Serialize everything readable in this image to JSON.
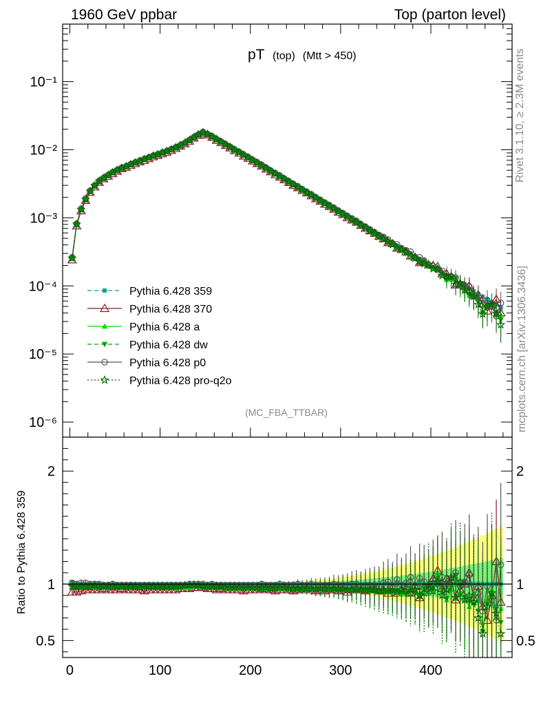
{
  "header": {
    "left": "1960 GeV ppbar",
    "right": "Top (parton level)"
  },
  "plot_title": {
    "main": "pT",
    "sub1": "(top)",
    "sub2": "(Mtt > 450)"
  },
  "analysis_tag": "(MC_FBA_TTBAR)",
  "side_labels": {
    "rivet": "Rivet 3.1.10, ≥ 2.3M events",
    "mcplots": "mcplots.cern.ch [arXiv:1306.3436]"
  },
  "ratio_ylabel": "Ratio to Pythia 6.428 359",
  "colors": {
    "p359": "#00a88a",
    "p370": "#8b1a2a",
    "pa": "#00dd00",
    "pdw": "#00a000",
    "pp0": "#555555",
    "pq2o": "#006400",
    "band_yellow": "#ffff80",
    "band_green": "#7cf07c"
  },
  "chart_data": {
    "type": "line",
    "x_axis": {
      "range": [
        -8,
        490
      ],
      "ticks": [
        0,
        100,
        200,
        300,
        400
      ]
    },
    "main_y_axis": {
      "scale": "log",
      "range": [
        6e-07,
        0.7
      ],
      "tick_labels": [
        "10⁻⁶",
        "10⁻⁵",
        "10⁻⁴",
        "10⁻³",
        "10⁻²",
        "10⁻¹"
      ]
    },
    "ratio_y_axis": {
      "range": [
        0.35,
        2.3
      ],
      "tick_labels": [
        "0.5",
        "1",
        "2"
      ]
    },
    "x": [
      2.5,
      7.5,
      12.5,
      17.5,
      22.5,
      27.5,
      32.5,
      37.5,
      42.5,
      47.5,
      52.5,
      57.5,
      62.5,
      67.5,
      72.5,
      77.5,
      82.5,
      87.5,
      92.5,
      97.5,
      102.5,
      107.5,
      112.5,
      117.5,
      122.5,
      127.5,
      132.5,
      137.5,
      142.5,
      147.5,
      152.5,
      157.5,
      162.5,
      167.5,
      172.5,
      177.5,
      182.5,
      187.5,
      192.5,
      197.5,
      202.5,
      207.5,
      212.5,
      217.5,
      222.5,
      227.5,
      232.5,
      237.5,
      242.5,
      247.5,
      252.5,
      257.5,
      262.5,
      267.5,
      272.5,
      277.5,
      282.5,
      287.5,
      292.5,
      297.5,
      302.5,
      307.5,
      312.5,
      317.5,
      322.5,
      327.5,
      332.5,
      337.5,
      342.5,
      347.5,
      352.5,
      357.5,
      362.5,
      367.5,
      372.5,
      377.5,
      382.5,
      387.5,
      392.5,
      397.5,
      402.5,
      407.5,
      412.5,
      417.5,
      422.5,
      427.5,
      432.5,
      437.5,
      442.5,
      447.5,
      452.5,
      457.5,
      462.5,
      467.5,
      472.5,
      477.5
    ],
    "reference_values": [
      0.00026,
      0.00082,
      0.00135,
      0.0019,
      0.0025,
      0.003,
      0.0035,
      0.0039,
      0.0043,
      0.0047,
      0.0051,
      0.0055,
      0.0058,
      0.0062,
      0.0066,
      0.007,
      0.0074,
      0.0078,
      0.0083,
      0.0087,
      0.0092,
      0.0097,
      0.0103,
      0.011,
      0.0118,
      0.0127,
      0.0139,
      0.0153,
      0.0168,
      0.0182,
      0.0172,
      0.0158,
      0.0145,
      0.0133,
      0.0122,
      0.0112,
      0.0102,
      0.0094,
      0.0086,
      0.0079,
      0.0072,
      0.0066,
      0.006,
      0.0055,
      0.005,
      0.00458,
      0.00418,
      0.00382,
      0.00349,
      0.00319,
      0.00291,
      0.00266,
      0.00243,
      0.00222,
      0.00203,
      0.00185,
      0.00169,
      0.00155,
      0.00141,
      0.00129,
      0.00118,
      0.00108,
      0.00098,
      0.0009,
      0.00082,
      0.00075,
      0.00068,
      0.00062,
      0.00057,
      0.00052,
      0.00047,
      0.00043,
      0.00039,
      0.00036,
      0.00033,
      0.0003,
      0.00027,
      0.00025,
      0.00023,
      0.00021,
      0.00019,
      0.000172,
      0.000157,
      0.000144,
      0.000131,
      0.00012,
      0.000109,
      0.0001,
      9.1e-05,
      8.3e-05,
      7.6e-05,
      6.9e-05,
      6.3e-05,
      5.8e-05,
      5.3e-05,
      4.8e-05
    ],
    "series": [
      {
        "name": "Pythia 6.428 359",
        "key": "p359",
        "color_key": "p359",
        "line": "dashed",
        "marker": "square",
        "ratio": [
          1.02,
          1.0,
          1.0,
          1.0,
          1.0,
          1.0,
          1.0,
          1.0,
          1.0,
          1.0,
          1.0,
          1.0,
          1.0,
          1.0,
          1.0,
          1.0,
          1.0,
          1.0,
          1.0,
          1.0,
          1.0,
          1.0,
          1.0,
          1.0,
          1.0,
          1.0,
          1.0,
          1.0,
          1.0,
          1.0,
          1.0,
          1.0,
          1.0,
          1.0,
          1.0,
          1.0,
          1.0,
          1.0,
          1.0,
          1.0,
          1.0,
          1.0,
          1.0,
          1.0,
          1.0,
          1.0,
          1.0,
          1.0,
          1.0,
          1.0,
          1.0,
          1.0,
          1.0,
          1.0,
          1.0,
          1.0,
          1.0,
          1.0,
          1.0,
          1.0,
          1.0,
          1.0,
          1.0,
          1.0,
          1.0,
          1.0,
          1.0,
          1.0,
          1.0,
          1.0,
          1.0,
          1.0,
          1.0,
          1.0,
          1.0,
          1.0,
          1.0,
          1.0,
          1.0,
          1.0,
          1.0,
          1.0,
          1.0,
          1.0,
          1.0,
          1.0,
          1.0,
          1.0,
          1.0,
          1.0,
          1.0,
          1.0,
          1.0,
          1.0,
          1.0,
          1.0
        ]
      },
      {
        "name": "Pythia 6.428 370",
        "key": "p370",
        "color_key": "p370",
        "line": "solid",
        "marker": "open-triangle",
        "ratio": [
          0.93,
          0.93,
          0.94,
          0.95,
          0.95,
          0.95,
          0.95,
          0.96,
          0.95,
          0.95,
          0.95,
          0.96,
          0.95,
          0.95,
          0.95,
          0.95,
          0.94,
          0.95,
          0.95,
          0.95,
          0.95,
          0.95,
          0.95,
          0.95,
          0.96,
          0.96,
          0.96,
          0.97,
          0.97,
          0.97,
          0.96,
          0.96,
          0.95,
          0.96,
          0.95,
          0.95,
          0.95,
          0.95,
          0.94,
          0.95,
          0.95,
          0.95,
          0.96,
          0.95,
          0.95,
          0.94,
          0.95,
          0.95,
          0.95,
          0.94,
          0.95,
          0.95,
          0.96,
          0.95,
          0.94,
          0.95,
          0.94,
          0.95,
          0.95,
          0.94,
          0.95,
          0.93,
          0.95,
          0.96,
          0.95,
          0.94,
          0.95,
          0.96,
          0.94,
          0.95,
          0.92,
          0.97,
          0.92,
          0.95,
          0.96,
          0.92,
          0.98,
          0.88,
          0.98,
          0.97,
          1.05,
          1.12,
          0.96,
          1.05,
          1.04,
          0.86,
          0.95,
          1.0,
          1.1,
          0.88,
          0.98,
          0.8,
          0.68,
          0.9,
          1.2,
          0.84
        ]
      },
      {
        "name": "Pythia 6.428 a",
        "key": "pa",
        "color_key": "pa",
        "line": "solid",
        "marker": "filled-triangle",
        "ratio": [
          1.0,
          0.98,
          0.97,
          0.97,
          0.98,
          0.97,
          0.98,
          0.97,
          0.97,
          0.98,
          0.97,
          0.97,
          0.98,
          0.97,
          0.98,
          0.97,
          0.97,
          0.98,
          0.97,
          0.97,
          0.98,
          0.97,
          0.97,
          0.96,
          0.97,
          0.97,
          0.97,
          0.98,
          0.98,
          0.98,
          0.97,
          0.97,
          0.97,
          0.97,
          0.97,
          0.96,
          0.97,
          0.97,
          0.96,
          0.97,
          0.97,
          0.97,
          0.96,
          0.96,
          0.96,
          0.97,
          0.96,
          0.96,
          0.96,
          0.96,
          0.96,
          0.96,
          0.95,
          0.96,
          0.96,
          0.96,
          0.96,
          0.95,
          0.96,
          0.95,
          0.95,
          0.95,
          0.95,
          0.96,
          0.95,
          0.95,
          0.94,
          0.95,
          0.94,
          0.94,
          0.93,
          0.94,
          0.95,
          0.91,
          0.93,
          0.97,
          0.94,
          0.89,
          0.98,
          0.92,
          0.96,
          1.1,
          0.93,
          0.86,
          0.95,
          1.06,
          0.93,
          0.86,
          0.8,
          0.92,
          0.85,
          0.6,
          0.86,
          0.95,
          0.7,
          0.78
        ]
      },
      {
        "name": "Pythia 6.428 dw",
        "key": "pdw",
        "color_key": "pdw",
        "line": "dashed",
        "marker": "filled-down-triangle",
        "ratio": [
          0.97,
          0.97,
          0.97,
          0.97,
          0.98,
          0.97,
          0.97,
          0.97,
          0.97,
          0.98,
          0.97,
          0.97,
          0.97,
          0.98,
          0.97,
          0.97,
          0.97,
          0.97,
          0.98,
          0.97,
          0.97,
          0.96,
          0.97,
          0.97,
          0.97,
          0.98,
          0.98,
          0.98,
          0.98,
          0.97,
          0.97,
          0.97,
          0.97,
          0.96,
          0.97,
          0.97,
          0.96,
          0.97,
          0.96,
          0.97,
          0.96,
          0.96,
          0.96,
          0.97,
          0.96,
          0.96,
          0.96,
          0.96,
          0.96,
          0.96,
          0.95,
          0.96,
          0.96,
          0.96,
          0.95,
          0.95,
          0.96,
          0.95,
          0.95,
          0.95,
          0.95,
          0.95,
          0.95,
          0.94,
          0.95,
          0.95,
          0.94,
          0.94,
          0.93,
          0.94,
          0.92,
          0.94,
          0.93,
          0.92,
          0.9,
          0.96,
          0.92,
          0.88,
          0.96,
          0.94,
          0.97,
          1.05,
          0.95,
          0.87,
          0.98,
          1.08,
          0.9,
          0.88,
          0.84,
          0.82,
          0.76,
          0.58,
          0.82,
          0.9,
          0.78,
          0.66
        ]
      },
      {
        "name": "Pythia 6.428 p0",
        "key": "pp0",
        "color_key": "pp0",
        "line": "solid",
        "marker": "open-circle",
        "ratio": [
          1.01,
          1.0,
          1.01,
          1.01,
          1.0,
          1.0,
          1.0,
          0.99,
          0.99,
          1.0,
          0.99,
          0.99,
          0.99,
          0.99,
          0.99,
          0.99,
          0.99,
          0.99,
          0.99,
          0.99,
          0.99,
          0.99,
          0.99,
          0.99,
          0.99,
          0.99,
          1.0,
          1.0,
          1.0,
          1.0,
          0.99,
          1.0,
          0.99,
          0.99,
          0.99,
          0.99,
          0.99,
          0.99,
          0.99,
          0.99,
          0.99,
          0.99,
          1.0,
          0.99,
          0.99,
          0.99,
          1.0,
          0.99,
          0.99,
          0.99,
          1.0,
          0.99,
          0.99,
          1.0,
          0.99,
          0.99,
          0.99,
          0.99,
          1.0,
          0.99,
          0.99,
          0.99,
          1.0,
          1.0,
          0.98,
          0.99,
          0.99,
          0.99,
          0.98,
          1.01,
          1.02,
          0.98,
          1.04,
          0.99,
          1.01,
          1.06,
          0.98,
          1.05,
          1.02,
          0.96,
          1.03,
          1.0,
          1.06,
          0.96,
          1.05,
          1.1,
          0.98,
          1.02,
          1.08,
          0.86,
          0.92,
          0.76,
          0.98,
          0.86,
          0.68,
          1.17
        ]
      },
      {
        "name": "Pythia 6.428 pro-q2o",
        "key": "pq2o",
        "color_key": "pq2o",
        "line": "dotted",
        "marker": "open-star",
        "ratio": [
          0.98,
          0.98,
          0.98,
          0.98,
          0.98,
          0.99,
          0.98,
          0.98,
          0.98,
          0.98,
          0.98,
          0.98,
          0.98,
          0.98,
          0.98,
          0.97,
          0.98,
          0.98,
          0.98,
          0.98,
          0.98,
          0.98,
          0.98,
          0.98,
          0.98,
          0.99,
          0.99,
          0.99,
          0.99,
          0.98,
          0.98,
          0.98,
          0.98,
          0.98,
          0.97,
          0.97,
          0.97,
          0.97,
          0.97,
          0.97,
          0.97,
          0.97,
          0.97,
          0.97,
          0.96,
          0.97,
          0.97,
          0.97,
          0.96,
          0.96,
          0.96,
          0.96,
          0.96,
          0.96,
          0.96,
          0.96,
          0.96,
          0.96,
          0.96,
          0.96,
          0.96,
          0.95,
          0.95,
          0.96,
          0.95,
          0.95,
          0.95,
          0.95,
          0.94,
          0.94,
          0.95,
          0.94,
          0.93,
          0.95,
          0.94,
          0.92,
          0.95,
          0.9,
          0.92,
          0.99,
          0.94,
          1.02,
          0.9,
          0.95,
          1.06,
          0.88,
          1.02,
          0.86,
          0.9,
          0.84,
          0.7,
          0.56,
          0.8,
          0.92,
          0.74,
          0.56
        ]
      }
    ]
  }
}
